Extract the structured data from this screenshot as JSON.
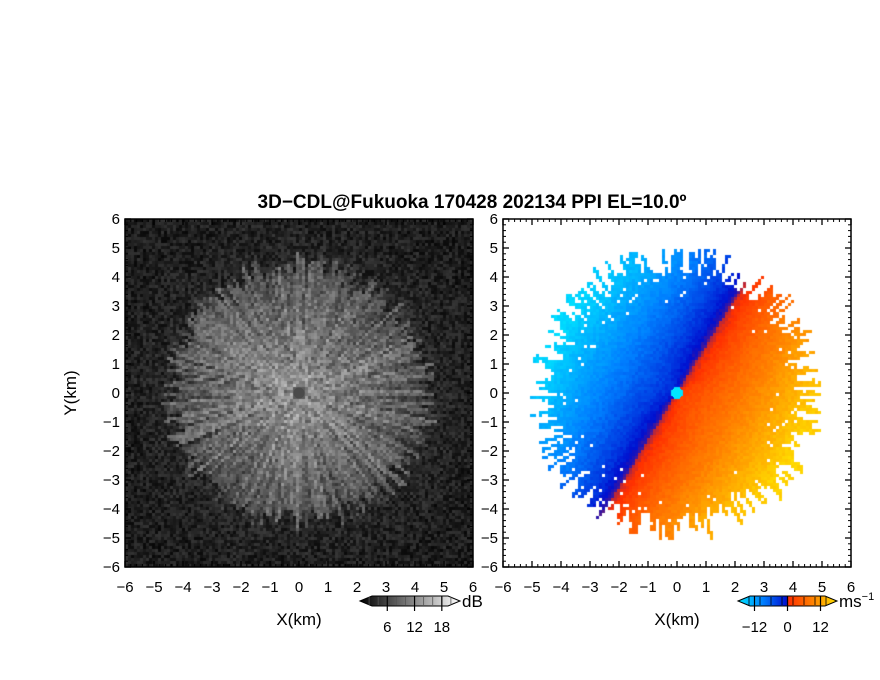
{
  "chart_data": [
    {
      "type": "heatmap",
      "title": "3D−CDL@Fukuoka 170428 202134 PPI EL=10.0º",
      "xlabel": "X(km)",
      "ylabel": "Y(km)",
      "xlim": [
        -6,
        6
      ],
      "ylim": [
        -6,
        6
      ],
      "xticks": [
        "−6",
        "−5",
        "−4",
        "−3",
        "−2",
        "−1",
        "0",
        "1",
        "2",
        "3",
        "4",
        "5",
        "6"
      ],
      "yticks": [
        "6",
        "5",
        "4",
        "3",
        "2",
        "1",
        "0",
        "−1",
        "−2",
        "−3",
        "−4",
        "−5",
        "−6"
      ],
      "colorbar": {
        "unit": "dB",
        "ticks": [
          "6",
          "12",
          "18"
        ],
        "range": [
          0,
          22
        ],
        "colors": [
          "#000000",
          "#ffffff"
        ]
      },
      "max_range_km": 4.5,
      "grid": false
    },
    {
      "type": "heatmap",
      "xlabel": "X(km)",
      "xlim": [
        -6,
        6
      ],
      "ylim": [
        -6,
        6
      ],
      "xticks": [
        "−6",
        "−5",
        "−4",
        "−3",
        "−2",
        "−1",
        "0",
        "1",
        "2",
        "3",
        "4",
        "5",
        "6"
      ],
      "yticks": [
        "6",
        "5",
        "4",
        "3",
        "2",
        "1",
        "0",
        "−1",
        "−2",
        "−3",
        "−4",
        "−5",
        "−6"
      ],
      "colorbar": {
        "unit": "ms",
        "unit_sup": "−1",
        "ticks": [
          "−12",
          "0",
          "12"
        ],
        "range": [
          -18,
          18
        ],
        "colors": [
          "#00e5ff",
          "#0080ff",
          "#0010d0",
          "#ff3000",
          "#ff8000",
          "#ffe000"
        ]
      },
      "max_range_km": 4.9,
      "grid": false
    }
  ]
}
